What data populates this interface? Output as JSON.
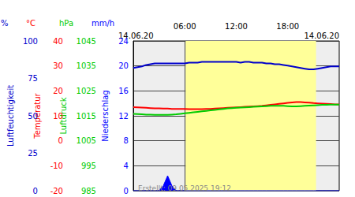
{
  "chart_data": {
    "type": "line",
    "date_start": "14.06.20",
    "date_end": "14.06.20",
    "footer": "Erstellt: 09.05.2025 19:12",
    "grid": true,
    "x": [
      0,
      0.5,
      1,
      1.5,
      2,
      2.5,
      3,
      3.5,
      4,
      4.5,
      5,
      5.5,
      6,
      6.5,
      7,
      7.5,
      8,
      8.5,
      9,
      9.5,
      10,
      10.5,
      11,
      11.5,
      12,
      12.5,
      13,
      13.5,
      14,
      14.5,
      15,
      15.5,
      16,
      16.5,
      17,
      17.5,
      18,
      18.5,
      19,
      19.5,
      20,
      20.5,
      21,
      21.5,
      22,
      22.5,
      23,
      23.5,
      24
    ],
    "xlim": [
      0,
      24
    ],
    "xticks": [
      {
        "value": 6,
        "label": "06:00"
      },
      {
        "value": 12,
        "label": "12:00"
      },
      {
        "value": 18,
        "label": "18:00"
      }
    ],
    "daylight": [
      6.1,
      21.3
    ],
    "series": [
      {
        "name": "Luftfeuchtigkeit",
        "unit": "%",
        "type": "line",
        "color": "#0000cc",
        "ylim": [
          0,
          100
        ],
        "yticks": [
          0,
          25,
          50,
          75,
          100
        ],
        "values": [
          82,
          82.5,
          83,
          84,
          84.5,
          85,
          85,
          85,
          85,
          85,
          85,
          85,
          85,
          85.5,
          85.5,
          85.5,
          86,
          86,
          86,
          86,
          86,
          86,
          86,
          86,
          86,
          85.5,
          86,
          86,
          85.5,
          85.5,
          85.5,
          85,
          85,
          84.5,
          84.5,
          84,
          83.5,
          83,
          82.5,
          82,
          81.5,
          81,
          81,
          81.5,
          82,
          82.5,
          83,
          83,
          83
        ]
      },
      {
        "name": "Temperatur",
        "unit": "°C",
        "type": "line",
        "color": "#ff0000",
        "ylim": [
          -20,
          40
        ],
        "yticks": [
          -20,
          -10,
          0,
          10,
          20,
          30,
          40
        ],
        "values": [
          13.5,
          13.4,
          13.3,
          13.2,
          13.1,
          13.0,
          13.0,
          12.9,
          12.9,
          12.8,
          12.8,
          12.8,
          12.8,
          12.7,
          12.7,
          12.7,
          12.7,
          12.8,
          12.8,
          12.9,
          13.0,
          13.1,
          13.2,
          13.3,
          13.4,
          13.5,
          13.6,
          13.7,
          13.8,
          13.9,
          14.0,
          14.2,
          14.4,
          14.6,
          14.8,
          15.0,
          15.2,
          15.4,
          15.5,
          15.5,
          15.4,
          15.3,
          15.1,
          15.0,
          14.9,
          14.8,
          14.7,
          14.6,
          14.6
        ]
      },
      {
        "name": "Luftdruck",
        "unit": "hPa",
        "type": "line",
        "color": "#00cc00",
        "ylim": [
          985,
          1045
        ],
        "yticks": [
          985,
          995,
          1005,
          1015,
          1025,
          1035,
          1045
        ],
        "values": [
          1015.8,
          1015.7,
          1015.6,
          1015.5,
          1015.5,
          1015.4,
          1015.4,
          1015.4,
          1015.4,
          1015.5,
          1015.6,
          1015.8,
          1016.0,
          1016.2,
          1016.4,
          1016.6,
          1016.8,
          1017.0,
          1017.2,
          1017.4,
          1017.6,
          1017.8,
          1018.0,
          1018.1,
          1018.2,
          1018.3,
          1018.4,
          1018.5,
          1018.6,
          1018.7,
          1018.8,
          1018.9,
          1019.0,
          1019.0,
          1019.0,
          1019.0,
          1018.9,
          1018.8,
          1018.8,
          1018.9,
          1019.0,
          1019.1,
          1019.2,
          1019.3,
          1019.4,
          1019.4,
          1019.5,
          1019.5,
          1019.5
        ]
      },
      {
        "name": "Niederschlag",
        "unit": "mm/h",
        "type": "area",
        "color": "#0000ff",
        "ylim": [
          0,
          24
        ],
        "yticks": [
          0,
          4,
          8,
          12,
          16,
          20,
          24
        ],
        "values": [
          0,
          0,
          0,
          0,
          0,
          0,
          0,
          0.8,
          2.4,
          0.8,
          0,
          0,
          0,
          0,
          0,
          0,
          0,
          0,
          0,
          0,
          0,
          0,
          0,
          0,
          0,
          0,
          0,
          0,
          0,
          0,
          0,
          0,
          0,
          0,
          0,
          0,
          0,
          0,
          0,
          0,
          0,
          0,
          0,
          0,
          0,
          0,
          0,
          0,
          0
        ]
      }
    ]
  }
}
